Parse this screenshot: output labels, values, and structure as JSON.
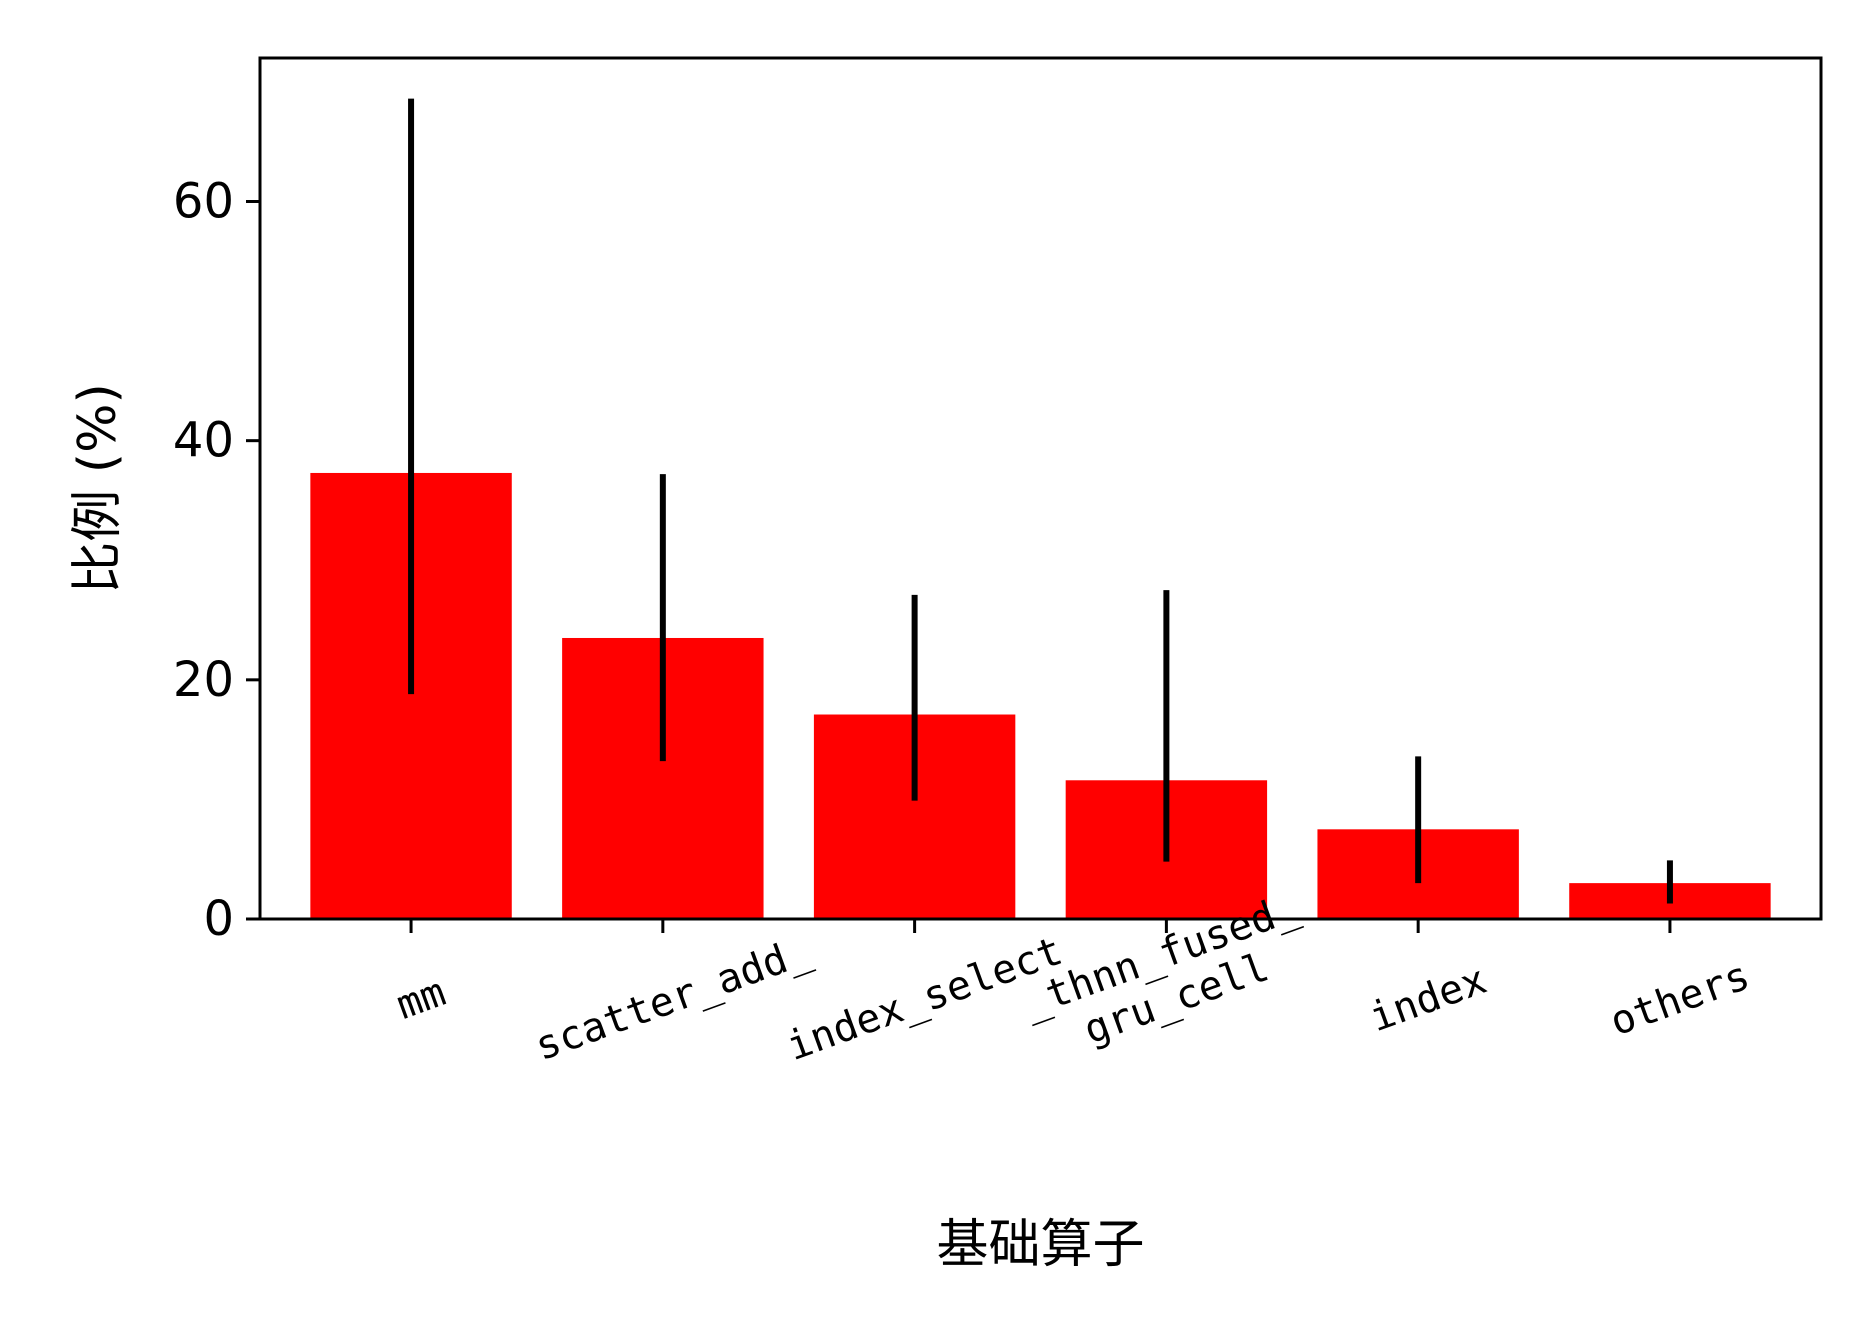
{
  "chart_data": {
    "type": "bar",
    "title": "",
    "xlabel": "基础算子",
    "ylabel": "比例 (%)",
    "categories": [
      [
        "mm"
      ],
      [
        "scatter_add_"
      ],
      [
        "index_select"
      ],
      [
        "_thnn_fused_",
        "gru_cell"
      ],
      [
        "index"
      ],
      [
        "others"
      ]
    ],
    "series": [
      {
        "values": [
          37.3,
          23.5,
          17.1,
          11.6,
          7.5,
          3.0
        ],
        "error_low": [
          18.8,
          13.2,
          9.9,
          4.8,
          3.0,
          1.3
        ],
        "error_high": [
          68.6,
          37.2,
          27.1,
          27.5,
          13.6,
          4.9
        ]
      }
    ],
    "ylim": [
      0,
      72
    ],
    "yticks": [
      "0",
      "20",
      "40",
      "60"
    ],
    "bar_color": "#ff0000",
    "error_color": "#000000",
    "grid": false,
    "legend": "none",
    "xtick_rotation": "rotated"
  }
}
